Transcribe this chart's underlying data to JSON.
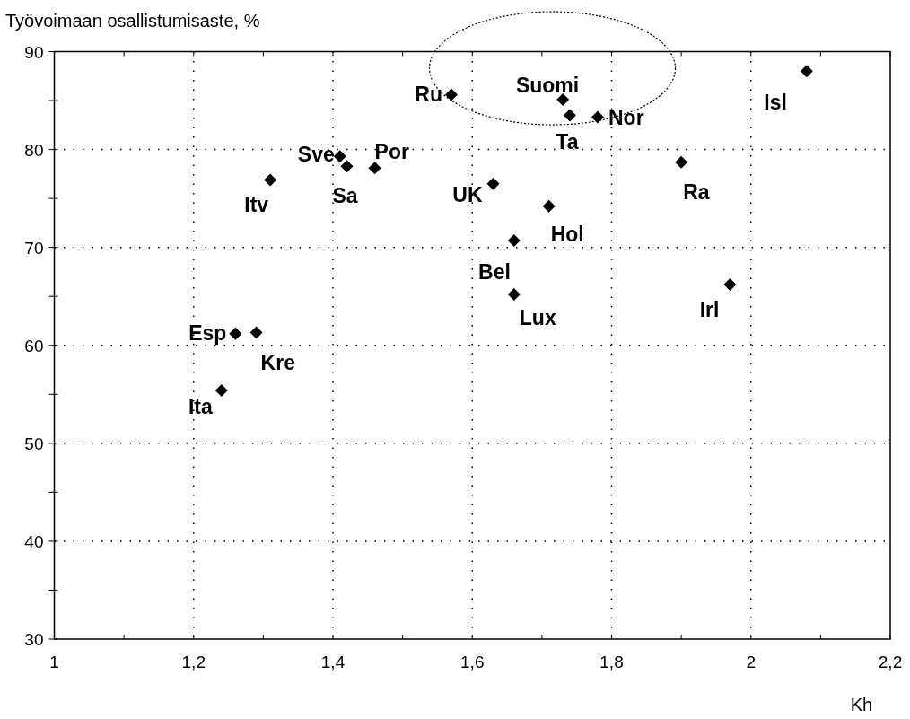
{
  "chart_data": {
    "type": "scatter",
    "ylabel": "Työvoimaan osallistumisaste, %",
    "xlabel": "Kh",
    "x": [
      1.57,
      1.73,
      1.74,
      1.78,
      2.08,
      1.41,
      1.42,
      1.46,
      1.31,
      1.63,
      1.71,
      1.9,
      1.66,
      1.66,
      1.97,
      1.26,
      1.29,
      1.24
    ],
    "series": [
      {
        "color": "#000000",
        "values": [
          85.6,
          85.1,
          83.5,
          83.3,
          88.0,
          79.3,
          78.3,
          78.1,
          76.9,
          76.5,
          74.2,
          78.7,
          70.7,
          65.2,
          66.2,
          61.2,
          61.3,
          55.4
        ]
      }
    ],
    "annotations": [
      {
        "text": "Ru",
        "x": 1.57,
        "y": 85.6
      },
      {
        "text": "Suomi",
        "x": 1.73,
        "y": 85.1
      },
      {
        "text": "Ta",
        "x": 1.74,
        "y": 83.5
      },
      {
        "text": "Nor",
        "x": 1.78,
        "y": 83.3
      },
      {
        "text": "Isl",
        "x": 2.08,
        "y": 88.0
      },
      {
        "text": "Sve",
        "x": 1.41,
        "y": 79.3
      },
      {
        "text": "Sa",
        "x": 1.42,
        "y": 78.3
      },
      {
        "text": "Por",
        "x": 1.46,
        "y": 78.1
      },
      {
        "text": "Itv",
        "x": 1.31,
        "y": 76.9
      },
      {
        "text": "UK",
        "x": 1.63,
        "y": 76.5
      },
      {
        "text": "Hol",
        "x": 1.71,
        "y": 74.2
      },
      {
        "text": "Ra",
        "x": 1.9,
        "y": 78.7
      },
      {
        "text": "Bel",
        "x": 1.66,
        "y": 70.7
      },
      {
        "text": "Lux",
        "x": 1.66,
        "y": 65.2
      },
      {
        "text": "Irl",
        "x": 1.97,
        "y": 66.2
      },
      {
        "text": "Esp",
        "x": 1.26,
        "y": 61.2
      },
      {
        "text": "Kre",
        "x": 1.29,
        "y": 61.3
      },
      {
        "text": "Ita",
        "x": 1.24,
        "y": 55.4
      }
    ],
    "xlim": [
      1,
      2.2
    ],
    "xticks": [
      1,
      {
        "value": 1.1,
        "label": null
      },
      {
        "value": 1.2,
        "label": "1,2"
      },
      {
        "value": 1.3,
        "label": null
      },
      {
        "value": 1.4,
        "label": "1,4"
      },
      {
        "value": 1.5,
        "label": null
      },
      {
        "value": 1.6,
        "label": "1,6"
      },
      {
        "value": 1.7,
        "label": null
      },
      {
        "value": 1.8,
        "label": "1,8"
      },
      {
        "value": 1.9,
        "label": null
      },
      2,
      {
        "value": 2.1,
        "label": null
      },
      {
        "value": 2.2,
        "label": "2,2"
      }
    ],
    "ylim": [
      30,
      90
    ],
    "yticks": [
      30,
      {
        "value": 35,
        "label": null
      },
      40,
      {
        "value": 45,
        "label": null
      },
      50,
      {
        "value": 55,
        "label": null
      },
      60,
      {
        "value": 65,
        "label": null
      },
      70,
      {
        "value": 75,
        "label": null
      },
      80,
      {
        "value": 85,
        "label": null
      },
      90
    ],
    "grid": true,
    "marker": "diamond"
  }
}
